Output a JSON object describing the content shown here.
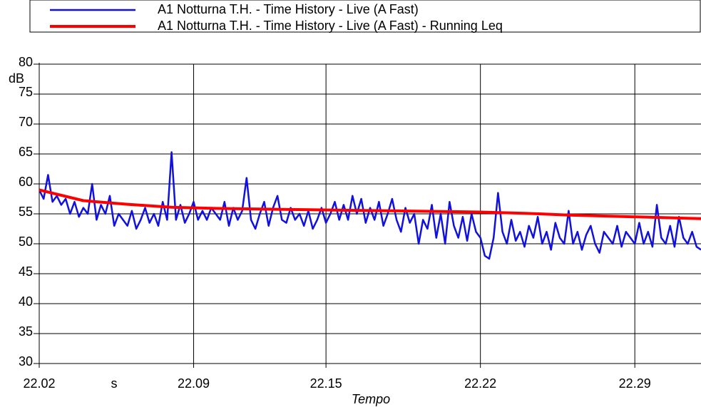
{
  "chart_data": {
    "type": "line",
    "x_label": "Tempo",
    "x_unit": "s",
    "y_unit": "dB",
    "xlim": [
      22.02,
      22.32
    ],
    "xticks": [
      22.02,
      22.09,
      22.15,
      22.22,
      22.29
    ],
    "ylim": [
      30,
      80
    ],
    "yticks": [
      30,
      35,
      40,
      45,
      50,
      55,
      60,
      65,
      70,
      75,
      80
    ],
    "grid": true,
    "legend": "top",
    "series": [
      {
        "name": "A1 Notturna T.H. - Time History - Live (A Fast)",
        "color": "#1010e0",
        "x": [
          22.02,
          22.022,
          22.024,
          22.026,
          22.028,
          22.03,
          22.032,
          22.034,
          22.036,
          22.038,
          22.04,
          22.042,
          22.044,
          22.046,
          22.048,
          22.05,
          22.052,
          22.054,
          22.056,
          22.058,
          22.06,
          22.062,
          22.064,
          22.066,
          22.068,
          22.07,
          22.072,
          22.074,
          22.076,
          22.078,
          22.08,
          22.082,
          22.084,
          22.086,
          22.088,
          22.09,
          22.092,
          22.094,
          22.096,
          22.098,
          22.1,
          22.102,
          22.104,
          22.106,
          22.108,
          22.11,
          22.112,
          22.114,
          22.116,
          22.118,
          22.12,
          22.122,
          22.124,
          22.126,
          22.128,
          22.13,
          22.132,
          22.134,
          22.136,
          22.138,
          22.14,
          22.142,
          22.144,
          22.146,
          22.148,
          22.15,
          22.152,
          22.154,
          22.156,
          22.158,
          22.16,
          22.162,
          22.164,
          22.166,
          22.168,
          22.17,
          22.172,
          22.174,
          22.176,
          22.178,
          22.18,
          22.182,
          22.184,
          22.186,
          22.188,
          22.19,
          22.192,
          22.194,
          22.196,
          22.198,
          22.2,
          22.202,
          22.204,
          22.206,
          22.208,
          22.21,
          22.212,
          22.214,
          22.216,
          22.218,
          22.22,
          22.222,
          22.224,
          22.226,
          22.228,
          22.23,
          22.232,
          22.234,
          22.236,
          22.238,
          22.24,
          22.242,
          22.244,
          22.246,
          22.248,
          22.25,
          22.252,
          22.254,
          22.256,
          22.258,
          22.26,
          22.262,
          22.264,
          22.266,
          22.268,
          22.27,
          22.272,
          22.274,
          22.276,
          22.278,
          22.28,
          22.282,
          22.284,
          22.286,
          22.288,
          22.29,
          22.292,
          22.294,
          22.296,
          22.298,
          22.3,
          22.302,
          22.304,
          22.306,
          22.308,
          22.31,
          22.312,
          22.314,
          22.316,
          22.318,
          22.32
        ],
        "values": [
          59,
          57.5,
          61.5,
          57,
          58,
          56.5,
          57.5,
          55,
          57,
          54.5,
          56,
          55,
          60,
          54,
          56.5,
          55,
          58,
          53,
          55,
          54,
          53,
          55.5,
          52.5,
          54,
          56,
          53.5,
          55,
          53,
          57,
          54,
          65.3,
          54,
          56.5,
          53.5,
          55,
          57,
          54,
          55.5,
          54,
          56,
          55,
          54,
          57,
          53,
          56,
          54,
          55.5,
          61,
          54,
          52.5,
          55,
          57,
          53,
          56,
          58,
          54,
          53.5,
          56,
          54,
          55,
          53,
          55.5,
          52.5,
          54,
          56,
          53.5,
          55,
          57,
          54,
          56.5,
          54,
          58,
          55,
          57.5,
          53.5,
          56,
          54,
          57,
          53,
          55,
          57.5,
          54,
          52,
          56,
          53.5,
          55,
          50,
          54,
          52.5,
          56.5,
          51,
          55,
          50,
          57,
          53,
          51,
          54.5,
          50.5,
          55,
          52,
          51,
          48,
          47.5,
          51,
          58.5,
          52,
          50,
          54,
          50.5,
          52,
          49.5,
          53,
          51,
          54.5,
          50,
          52,
          49,
          53.5,
          51,
          50,
          55.5,
          50,
          52,
          49,
          51.5,
          53,
          50,
          48.5,
          52,
          51,
          50,
          53,
          49.5,
          52,
          51,
          50,
          53.5,
          50,
          52,
          49.5,
          56.5,
          51,
          50,
          53,
          49.5,
          54.5,
          51,
          50,
          52,
          49.5,
          49
        ]
      },
      {
        "name": "A1 Notturna T.H. - Time History - Live (A Fast) - Running Leq",
        "color": "#ff0000",
        "x": [
          22.02,
          22.04,
          22.06,
          22.08,
          22.1,
          22.12,
          22.14,
          22.16,
          22.18,
          22.2,
          22.22,
          22.24,
          22.26,
          22.28,
          22.3,
          22.32
        ],
        "values": [
          59,
          57.2,
          56.6,
          56.1,
          55.9,
          55.8,
          55.7,
          55.6,
          55.5,
          55.4,
          55.3,
          55.1,
          54.8,
          54.6,
          54.4,
          54.2
        ]
      }
    ]
  }
}
